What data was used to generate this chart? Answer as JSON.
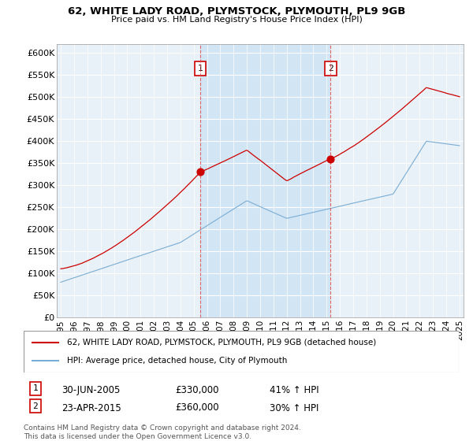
{
  "title": "62, WHITE LADY ROAD, PLYMSTOCK, PLYMOUTH, PL9 9GB",
  "subtitle": "Price paid vs. HM Land Registry's House Price Index (HPI)",
  "ylabel_ticks": [
    "£0",
    "£50K",
    "£100K",
    "£150K",
    "£200K",
    "£250K",
    "£300K",
    "£350K",
    "£400K",
    "£450K",
    "£500K",
    "£550K",
    "£600K"
  ],
  "ytick_values": [
    0,
    50000,
    100000,
    150000,
    200000,
    250000,
    300000,
    350000,
    400000,
    450000,
    500000,
    550000,
    600000
  ],
  "ylim": [
    0,
    620000
  ],
  "plot_bg_color": "#e8f0f8",
  "shade_color": "#d0e4f5",
  "legend_label_red": "62, WHITE LADY ROAD, PLYMSTOCK, PLYMOUTH, PL9 9GB (detached house)",
  "legend_label_blue": "HPI: Average price, detached house, City of Plymouth",
  "marker1_x": 2005.5,
  "marker1_date_str": "30-JUN-2005",
  "marker1_price": "£330,000",
  "marker1_hpi": "41% ↑ HPI",
  "marker1_val": 330000,
  "marker2_x": 2015.3,
  "marker2_date_str": "23-APR-2015",
  "marker2_price": "£360,000",
  "marker2_hpi": "30% ↑ HPI",
  "marker2_val": 360000,
  "footer": "Contains HM Land Registry data © Crown copyright and database right 2024.\nThis data is licensed under the Open Government Licence v3.0.",
  "red_color": "#cc0000",
  "blue_color": "#7aadd4",
  "vline_color": "#dd4444",
  "xlim_left": 1994.7,
  "xlim_right": 2025.3,
  "x_ticks": [
    1995,
    1996,
    1997,
    1998,
    1999,
    2000,
    2001,
    2002,
    2003,
    2004,
    2005,
    2006,
    2007,
    2008,
    2009,
    2010,
    2011,
    2012,
    2013,
    2014,
    2015,
    2016,
    2017,
    2018,
    2019,
    2020,
    2021,
    2022,
    2023,
    2024,
    2025
  ]
}
